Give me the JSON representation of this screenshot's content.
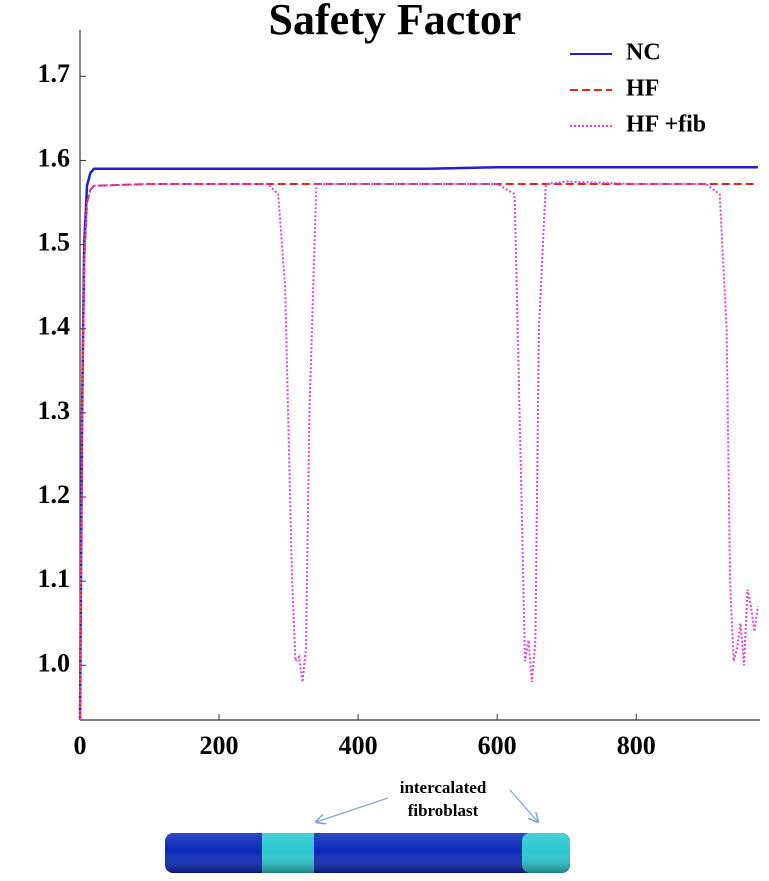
{
  "chart_data": {
    "type": "line",
    "title": "Safety Factor",
    "x": [
      0,
      3,
      6,
      10,
      15,
      20,
      100,
      200,
      270,
      285,
      295,
      305,
      310,
      315,
      320,
      325,
      330,
      340,
      400,
      500,
      600,
      625,
      635,
      640,
      645,
      650,
      655,
      660,
      670,
      700,
      800,
      900,
      920,
      930,
      935,
      940,
      945,
      950,
      955,
      960,
      965,
      970,
      975
    ],
    "series": [
      {
        "name": "NC",
        "color": "#1f1fd6",
        "dash": "solid",
        "values": [
          0.935,
          1.3,
          1.5,
          1.57,
          1.585,
          1.59,
          1.59,
          1.59,
          1.59,
          1.59,
          1.59,
          1.59,
          1.59,
          1.59,
          1.59,
          1.59,
          1.59,
          1.59,
          1.59,
          1.59,
          1.592,
          1.592,
          1.592,
          1.592,
          1.592,
          1.592,
          1.592,
          1.592,
          1.592,
          1.592,
          1.592,
          1.592,
          1.592,
          1.592,
          1.592,
          1.592,
          1.592,
          1.592,
          1.592,
          1.592,
          1.592,
          1.592,
          1.592
        ]
      },
      {
        "name": "HF",
        "color": "#e8231e",
        "dash": "dashed",
        "values": [
          0.935,
          1.3,
          1.48,
          1.55,
          1.565,
          1.57,
          1.572,
          1.572,
          1.572,
          1.572,
          1.572,
          1.572,
          1.572,
          1.572,
          1.572,
          1.572,
          1.572,
          1.572,
          1.572,
          1.572,
          1.572,
          1.572,
          1.572,
          1.572,
          1.572,
          1.572,
          1.572,
          1.572,
          1.572,
          1.572,
          1.572,
          1.572,
          1.572,
          1.572,
          1.572,
          1.572,
          1.572,
          1.572,
          1.572,
          1.572,
          1.572,
          1.572,
          1.572
        ]
      },
      {
        "name": "HF +fib",
        "color": "#e040e0",
        "dash": "dotted",
        "values": [
          0.935,
          1.3,
          1.48,
          1.55,
          1.565,
          1.57,
          1.572,
          1.572,
          1.572,
          1.56,
          1.45,
          1.1,
          1.005,
          1.01,
          0.98,
          1.02,
          1.3,
          1.572,
          1.572,
          1.572,
          1.572,
          1.56,
          1.2,
          1.005,
          1.03,
          0.98,
          1.03,
          1.4,
          1.572,
          1.575,
          1.572,
          1.572,
          1.56,
          1.4,
          1.1,
          1.005,
          1.02,
          1.05,
          1.0,
          1.09,
          1.07,
          1.04,
          1.07
        ]
      }
    ],
    "xlim": [
      0,
      978
    ],
    "xticks": [
      0,
      200,
      400,
      600,
      800
    ],
    "ylim": [
      0.935,
      1.755
    ],
    "yticks": [
      {
        "value": 1.0,
        "label": "1.0"
      },
      1.1,
      1.2,
      1.3,
      1.4,
      1.5,
      1.6,
      1.7
    ],
    "legend": "top-right",
    "annotation_lines": [
      "intercalated",
      "fibroblast"
    ]
  }
}
